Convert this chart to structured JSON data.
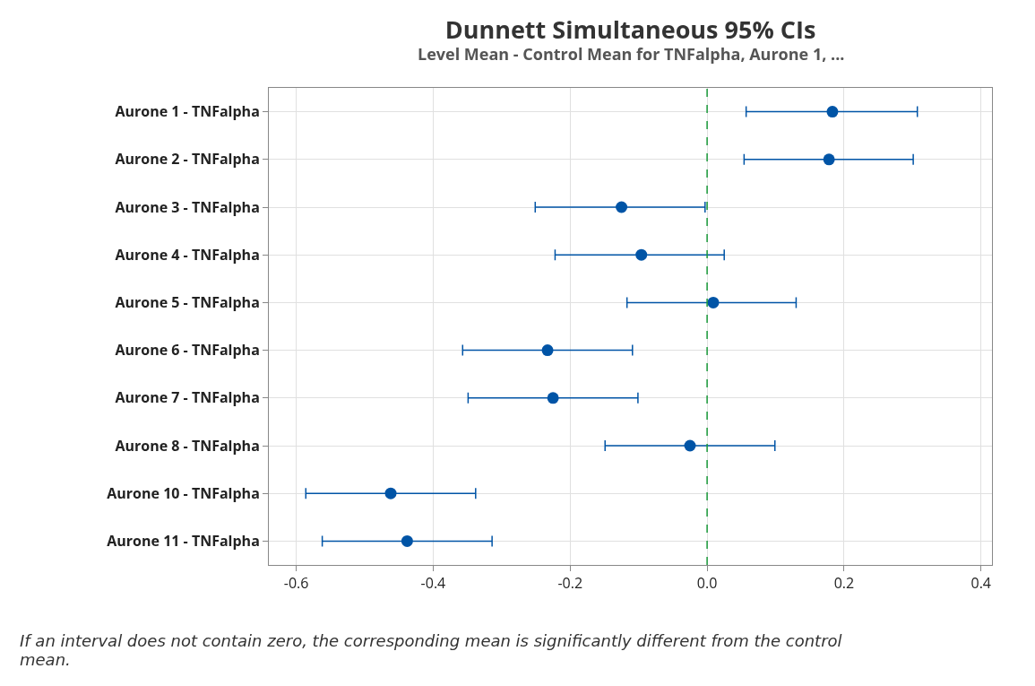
{
  "chart_data": {
    "type": "scatter",
    "title": "Dunnett Simultaneous 95% CIs",
    "subtitle": "Level Mean - Control Mean for TNFalpha, Aurone 1, ...",
    "orientation": "horizontal",
    "categories": [
      "Aurone 1 - TNFalpha",
      "Aurone 2 - TNFalpha",
      "Aurone 3 - TNFalpha",
      "Aurone 4 - TNFalpha",
      "Aurone 5 - TNFalpha",
      "Aurone 6 - TNFalpha",
      "Aurone 7 - TNFalpha",
      "Aurone 8 - TNFalpha",
      "Aurone 10 - TNFalpha",
      "Aurone 11 - TNFalpha"
    ],
    "color": "#0054a6",
    "values": [
      0.183,
      0.178,
      -0.125,
      -0.096,
      0.009,
      -0.233,
      -0.225,
      -0.025,
      -0.462,
      -0.438
    ],
    "errors": [
      [
        0.057,
        0.307
      ],
      [
        0.054,
        0.301
      ],
      [
        -0.251,
        -0.003
      ],
      [
        -0.222,
        0.025
      ],
      [
        -0.117,
        0.13
      ],
      [
        -0.357,
        -0.109
      ],
      [
        -0.349,
        -0.101
      ],
      [
        -0.149,
        0.099
      ],
      [
        -0.586,
        -0.338
      ],
      [
        -0.562,
        -0.314
      ]
    ],
    "xlim": [
      -0.64,
      0.416
    ],
    "xticks": [
      {
        "value": -0.6,
        "label": "-0.6"
      },
      {
        "value": -0.4,
        "label": "-0.4"
      },
      {
        "value": -0.2,
        "label": "-0.2"
      },
      {
        "value": 0,
        "label": "0.0"
      },
      {
        "value": 0.2,
        "label": "0.2"
      },
      {
        "value": 0.4,
        "label": "0.4"
      }
    ],
    "ref_lines": [
      {
        "axis": "x",
        "value": 0,
        "color": "#1a9a3a",
        "line_style": "dashed"
      }
    ],
    "grid": true,
    "marker": "circle",
    "annotations": [
      "If an interval does not contain zero, the corresponding mean is significantly different from the control mean."
    ]
  }
}
